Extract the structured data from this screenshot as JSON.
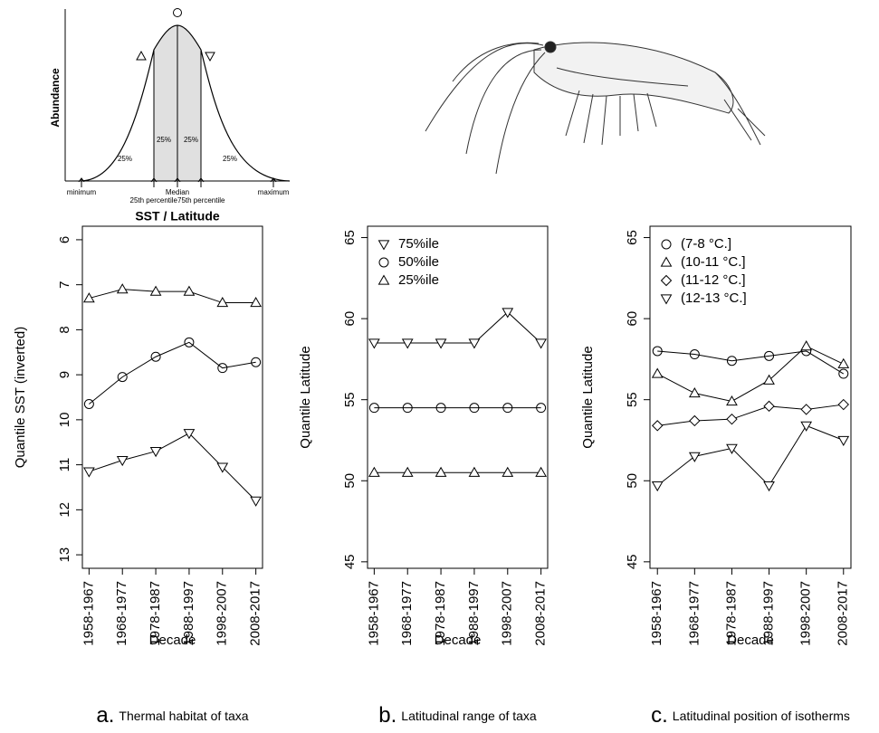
{
  "schematic": {
    "y_label": "Abundance",
    "x_label": "SST / Latitude",
    "shares": [
      "25%",
      "25%",
      "25%",
      "25%"
    ],
    "minimum": "minimum",
    "median": "Median",
    "p25": "25th percentile",
    "p75": "75th percentile",
    "maximum": "maximum"
  },
  "chart_data": [
    {
      "type": "line",
      "caption_letter": "a.",
      "caption": "Thermal habitat of taxa",
      "x_label": "Decade",
      "y_label": "Quantile SST (inverted)",
      "categories": [
        "1958-1967",
        "1968-1977",
        "1978-1987",
        "1988-1997",
        "1998-2007",
        "2008-2017"
      ],
      "ylim": [
        13.3,
        5.7
      ],
      "yticks": [
        6,
        7,
        8,
        9,
        10,
        11,
        12,
        13
      ],
      "series": [
        {
          "marker": "triangle-up",
          "color": "#000000",
          "values": [
            7.3,
            7.1,
            7.15,
            7.15,
            7.4,
            7.4
          ]
        },
        {
          "marker": "circle",
          "color": "#000000",
          "values": [
            9.65,
            9.05,
            8.6,
            8.28,
            8.85,
            8.72
          ]
        },
        {
          "marker": "triangle-down",
          "color": "#000000",
          "values": [
            11.15,
            10.9,
            10.7,
            10.3,
            11.05,
            11.8
          ]
        }
      ]
    },
    {
      "type": "line",
      "caption_letter": "b.",
      "caption": "Latitudinal range of taxa",
      "x_label": "Decade",
      "y_label": "Quantile Latitude",
      "categories": [
        "1958-1967",
        "1968-1977",
        "1978-1987",
        "1988-1997",
        "1998-2007",
        "2008-2017"
      ],
      "ylim": [
        44.6,
        65.7
      ],
      "yticks": [
        45,
        50,
        55,
        60,
        65
      ],
      "legend": "topleft",
      "series": [
        {
          "name": "75%ile",
          "marker": "triangle-down",
          "color": "#000000",
          "values": [
            58.5,
            58.5,
            58.5,
            58.5,
            60.4,
            58.5
          ]
        },
        {
          "name": "50%ile",
          "marker": "circle",
          "color": "#000000",
          "values": [
            54.5,
            54.5,
            54.5,
            54.5,
            54.5,
            54.5
          ]
        },
        {
          "name": "25%ile",
          "marker": "triangle-up",
          "color": "#000000",
          "values": [
            50.5,
            50.5,
            50.5,
            50.5,
            50.5,
            50.5
          ]
        }
      ]
    },
    {
      "type": "line",
      "caption_letter": "c.",
      "caption": "Latitudinal position of isotherms",
      "x_label": "Decade",
      "y_label": "Quantile Latitude",
      "categories": [
        "1958-1967",
        "1968-1977",
        "1978-1987",
        "1988-1997",
        "1998-2007",
        "2008-2017"
      ],
      "ylim": [
        44.6,
        65.7
      ],
      "yticks": [
        45,
        50,
        55,
        60,
        65
      ],
      "legend": "topleft",
      "series": [
        {
          "name": "(7-8 °C.]",
          "marker": "circle",
          "color": "#000000",
          "values": [
            58.0,
            57.8,
            57.4,
            57.7,
            58.0,
            56.6
          ]
        },
        {
          "name": "(10-11 °C.]",
          "marker": "triangle-up",
          "color": "#000000",
          "values": [
            56.6,
            55.4,
            54.9,
            56.2,
            58.3,
            57.2
          ]
        },
        {
          "name": "(11-12 °C.]",
          "marker": "diamond",
          "color": "#000000",
          "values": [
            53.4,
            53.7,
            53.8,
            54.6,
            54.4,
            54.7
          ]
        },
        {
          "name": "(12-13 °C.]",
          "marker": "triangle-down",
          "color": "#000000",
          "values": [
            49.7,
            51.5,
            52.0,
            49.7,
            53.4,
            52.5
          ]
        }
      ]
    }
  ]
}
